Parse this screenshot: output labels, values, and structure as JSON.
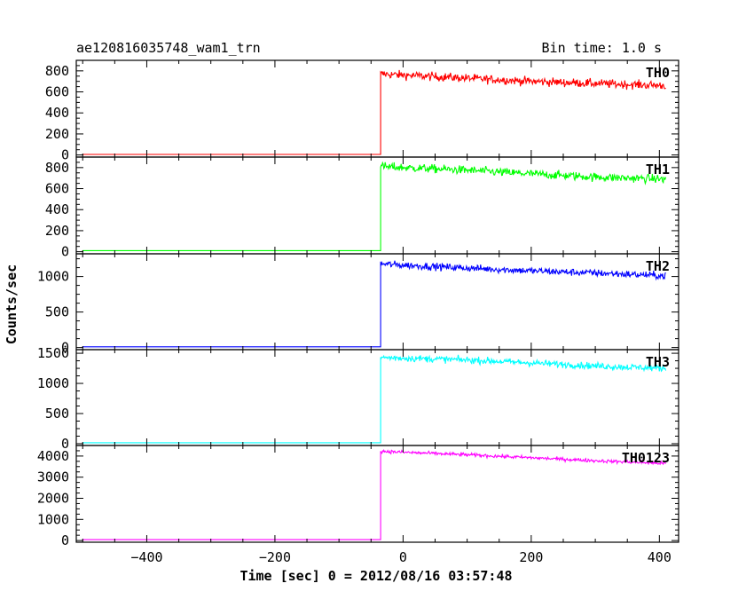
{
  "header": {
    "title": "ae120816035748_wam1_trn",
    "bin_time": "Bin time: 1.0 s"
  },
  "chart_data": {
    "type": "line",
    "title": "ae120816035748_wam1_trn",
    "subtitle": "Bin time: 1.0 s",
    "xlabel": "Time [sec] 0 = 2012/08/16 03:57:48",
    "ylabel": "Counts/sec",
    "xlim": [
      -510,
      430
    ],
    "x_ticks": [
      -400,
      -200,
      0,
      200,
      400
    ],
    "x_tick_labels": [
      "−400",
      "−200",
      "0",
      "200",
      "400"
    ],
    "grid": false,
    "trigger_time": -35,
    "time_range": [
      -500,
      410
    ],
    "panels": [
      {
        "name": "TH0",
        "color": "#ff0000",
        "ylim": [
          -20,
          900
        ],
        "y_ticks": [
          0,
          200,
          400,
          600,
          800
        ],
        "y_tick_labels": [
          "0",
          "200",
          "400",
          "600",
          "800"
        ],
        "pre_level": 5,
        "levels": [
          [
            -35,
            770
          ],
          [
            0,
            760
          ],
          [
            100,
            730
          ],
          [
            200,
            700
          ],
          [
            300,
            680
          ],
          [
            410,
            660
          ]
        ],
        "noise": 40
      },
      {
        "name": "TH1",
        "color": "#00ff00",
        "ylim": [
          -20,
          900
        ],
        "y_ticks": [
          0,
          200,
          400,
          600,
          800
        ],
        "y_tick_labels": [
          "0",
          "200",
          "400",
          "600",
          "800"
        ],
        "pre_level": 10,
        "levels": [
          [
            -35,
            810
          ],
          [
            0,
            800
          ],
          [
            100,
            775
          ],
          [
            200,
            740
          ],
          [
            300,
            710
          ],
          [
            410,
            690
          ]
        ],
        "noise": 40
      },
      {
        "name": "TH2",
        "color": "#0000ff",
        "ylim": [
          -30,
          1320
        ],
        "y_ticks": [
          0,
          500,
          1000
        ],
        "y_tick_labels": [
          "0",
          "500",
          "1000"
        ],
        "pre_level": 10,
        "levels": [
          [
            -35,
            1180
          ],
          [
            0,
            1160
          ],
          [
            100,
            1120
          ],
          [
            200,
            1080
          ],
          [
            300,
            1050
          ],
          [
            410,
            1010
          ]
        ],
        "noise": 50
      },
      {
        "name": "TH3",
        "color": "#00ffff",
        "ylim": [
          -30,
          1560
        ],
        "y_ticks": [
          0,
          500,
          1000,
          1500
        ],
        "y_tick_labels": [
          "0",
          "500",
          "1000",
          "1500"
        ],
        "pre_level": 15,
        "levels": [
          [
            -35,
            1430
          ],
          [
            0,
            1420
          ],
          [
            100,
            1390
          ],
          [
            200,
            1340
          ],
          [
            300,
            1290
          ],
          [
            410,
            1250
          ]
        ],
        "noise": 55
      },
      {
        "name": "TH0123",
        "color": "#ff00ff",
        "ylim": [
          -80,
          4500
        ],
        "y_ticks": [
          0,
          1000,
          2000,
          3000,
          4000
        ],
        "y_tick_labels": [
          "0",
          "1000",
          "2000",
          "3000",
          "4000"
        ],
        "pre_level": 40,
        "levels": [
          [
            -35,
            4230
          ],
          [
            0,
            4180
          ],
          [
            100,
            4060
          ],
          [
            200,
            3920
          ],
          [
            300,
            3780
          ],
          [
            410,
            3650
          ]
        ],
        "noise": 80
      }
    ]
  }
}
